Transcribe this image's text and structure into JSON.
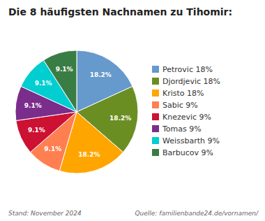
{
  "chart_data": {
    "type": "pie",
    "title": "Die 8 häufigsten Nachnamen zu Tihomir:",
    "categories": [
      "Petrovic 18%",
      "Djordjevic 18%",
      "Kristo 18%",
      "Sabic 9%",
      "Knezevic 9%",
      "Tomas 9%",
      "Weissbarth 9%",
      "Barbucov 9%"
    ],
    "values": [
      18.2,
      18.2,
      18.2,
      9.1,
      9.1,
      9.1,
      9.1,
      9.1
    ],
    "value_labels": [
      "18.2%",
      "18.2%",
      "18.2%",
      "9.1%",
      "9.1%",
      "9.1%",
      "9.1%",
      "9.1%"
    ],
    "colors": [
      "#6699cc",
      "#6b8e23",
      "#ffa500",
      "#ff7f50",
      "#cc1133",
      "#7b2d8b",
      "#00ced1",
      "#3a7d44"
    ],
    "data_labels": true,
    "legend": "right",
    "annotations": [
      "Stand: November 2024",
      "Quelle: familienbande24.de/vornamen/"
    ]
  }
}
